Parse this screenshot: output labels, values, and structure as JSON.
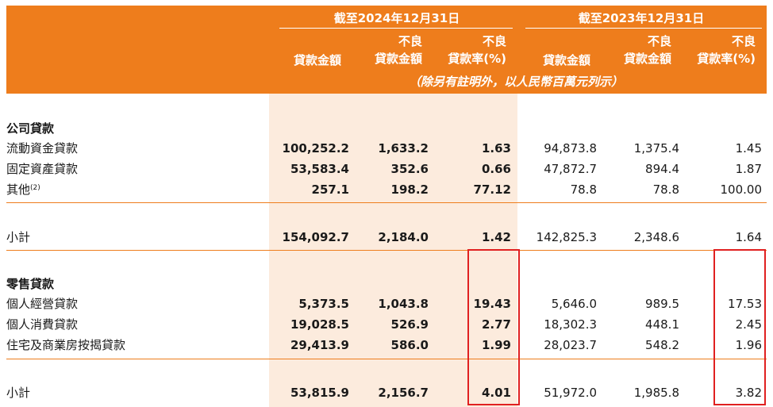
{
  "header": {
    "period_2024": "截至2024年12月31日",
    "period_2023": "截至2023年12月31日",
    "col_loan_amount": "貸款金額",
    "col_npl_amount_line1": "不良",
    "col_npl_amount_line2": "貸款金額",
    "col_npl_ratio_line1": "不良",
    "col_npl_ratio_line2": "貸款率(%)",
    "note": "（除另有註明外，以人民幣百萬元列示）"
  },
  "sections": {
    "corporate": "公司貸款",
    "retail": "零售貸款"
  },
  "rows": [
    {
      "label": "流動資金貸款",
      "v": [
        "100,252.2",
        "1,633.2",
        "1.63",
        "94,873.8",
        "1,375.4",
        "1.45"
      ]
    },
    {
      "label": "固定資產貸款",
      "v": [
        "53,583.4",
        "352.6",
        "0.66",
        "47,872.7",
        "894.4",
        "1.87"
      ]
    },
    {
      "label": "其他",
      "sup": "(2)",
      "v": [
        "257.1",
        "198.2",
        "77.12",
        "78.8",
        "78.8",
        "100.00"
      ]
    },
    {
      "label": "小計",
      "v": [
        "154,092.7",
        "2,184.0",
        "1.42",
        "142,825.3",
        "2,348.6",
        "1.64"
      ]
    },
    {
      "label": "個人經營貸款",
      "v": [
        "5,373.5",
        "1,043.8",
        "19.43",
        "5,646.0",
        "989.5",
        "17.53"
      ]
    },
    {
      "label": "個人消費貸款",
      "v": [
        "19,028.5",
        "526.9",
        "2.77",
        "18,302.3",
        "448.1",
        "2.45"
      ]
    },
    {
      "label": "住宅及商業房按揭貸款",
      "v": [
        "29,413.9",
        "586.0",
        "1.99",
        "28,023.7",
        "548.2",
        "1.96"
      ]
    },
    {
      "label": "小計",
      "v": [
        "53,815.9",
        "2,156.7",
        "4.01",
        "51,972.0",
        "1,985.8",
        "3.82"
      ]
    }
  ],
  "colors": {
    "header_bg": "#EE7D1C",
    "shade": "#FCEBDD",
    "highlight_box": "#E02020"
  }
}
